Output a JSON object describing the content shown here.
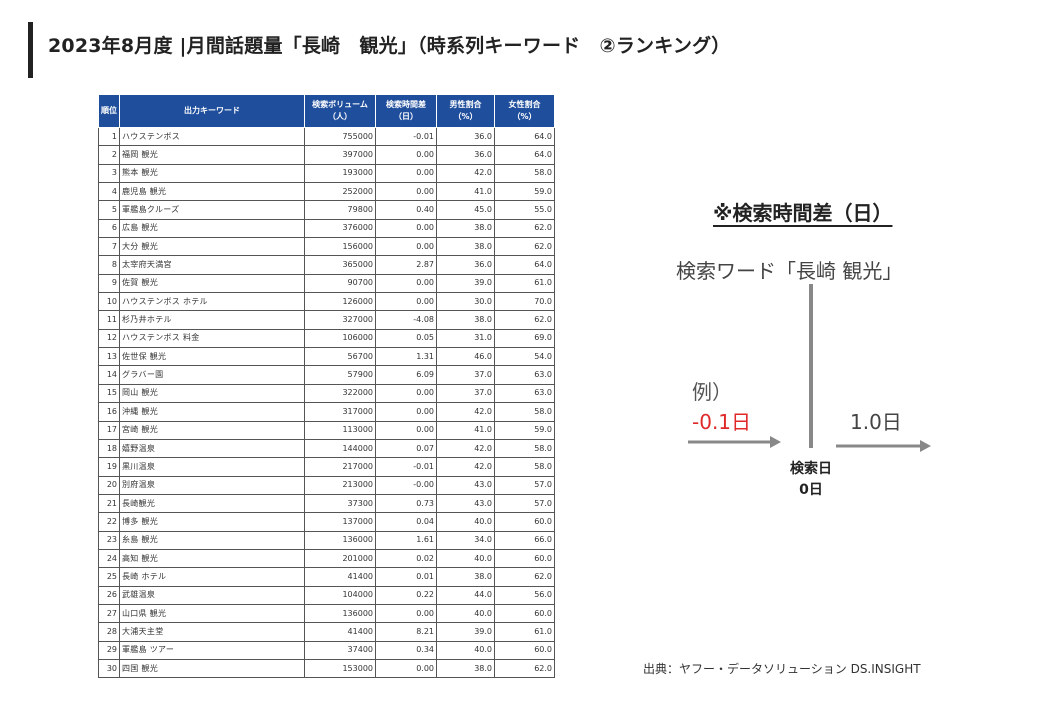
{
  "title": "2023年8月度 |月間話題量「長崎　観光」（時系列キーワード　②ランキング）",
  "table": {
    "headers": {
      "rank": "順位",
      "keyword": "出力キーワード",
      "volume": [
        "検索ボリューム",
        "（人）"
      ],
      "diff": [
        "検索時間差",
        "（日）"
      ],
      "male": [
        "男性割合",
        "（%）"
      ],
      "female": [
        "女性割合",
        "（%）"
      ]
    },
    "rows": [
      {
        "rank": "1",
        "keyword": "ハウステンボス",
        "volume": "755000",
        "diff": "-0.01",
        "male": "36.0",
        "female": "64.0",
        "diff_color": "red"
      },
      {
        "rank": "2",
        "keyword": "福岡 観光",
        "volume": "397000",
        "diff": "0.00",
        "male": "36.0",
        "female": "64.0"
      },
      {
        "rank": "3",
        "keyword": "熊本 観光",
        "volume": "193000",
        "diff": "0.00",
        "male": "42.0",
        "female": "58.0"
      },
      {
        "rank": "4",
        "keyword": "鹿児島 観光",
        "volume": "252000",
        "diff": "0.00",
        "male": "41.0",
        "female": "59.0"
      },
      {
        "rank": "5",
        "keyword": "軍艦島クルーズ",
        "volume": "79800",
        "diff": "0.40",
        "male": "45.0",
        "female": "55.0"
      },
      {
        "rank": "6",
        "keyword": "広島 観光",
        "volume": "376000",
        "diff": "0.00",
        "male": "38.0",
        "female": "62.0"
      },
      {
        "rank": "7",
        "keyword": "大分 観光",
        "volume": "156000",
        "diff": "0.00",
        "male": "38.0",
        "female": "62.0"
      },
      {
        "rank": "8",
        "keyword": "太宰府天満宮",
        "volume": "365000",
        "diff": "2.87",
        "male": "36.0",
        "female": "64.0"
      },
      {
        "rank": "9",
        "keyword": "佐賀 観光",
        "volume": "90700",
        "diff": "0.00",
        "male": "39.0",
        "female": "61.0"
      },
      {
        "rank": "10",
        "keyword": "ハウステンボス ホテル",
        "volume": "126000",
        "diff": "0.00",
        "male": "30.0",
        "female": "70.0"
      },
      {
        "rank": "11",
        "keyword": "杉乃井ホテル",
        "volume": "327000",
        "diff": "-4.08",
        "male": "38.0",
        "female": "62.0",
        "diff_color": "red"
      },
      {
        "rank": "12",
        "keyword": "ハウステンボス 料金",
        "volume": "106000",
        "diff": "0.05",
        "male": "31.0",
        "female": "69.0"
      },
      {
        "rank": "13",
        "keyword": "佐世保 観光",
        "volume": "56700",
        "diff": "1.31",
        "male": "46.0",
        "female": "54.0"
      },
      {
        "rank": "14",
        "keyword": "グラバー園",
        "volume": "57900",
        "diff": "6.09",
        "male": "37.0",
        "female": "63.0"
      },
      {
        "rank": "15",
        "keyword": "岡山 観光",
        "volume": "322000",
        "diff": "0.00",
        "male": "37.0",
        "female": "63.0"
      },
      {
        "rank": "16",
        "keyword": "沖縄 観光",
        "volume": "317000",
        "diff": "0.00",
        "male": "42.0",
        "female": "58.0"
      },
      {
        "rank": "17",
        "keyword": "宮崎 観光",
        "volume": "113000",
        "diff": "0.00",
        "male": "41.0",
        "female": "59.0"
      },
      {
        "rank": "18",
        "keyword": "嬉野温泉",
        "volume": "144000",
        "diff": "0.07",
        "male": "42.0",
        "female": "58.0",
        "diff_color": "red"
      },
      {
        "rank": "19",
        "keyword": "黒川温泉",
        "volume": "217000",
        "diff": "-0.01",
        "male": "42.0",
        "female": "58.0",
        "diff_color": "red"
      },
      {
        "rank": "20",
        "keyword": "別府温泉",
        "volume": "213000",
        "diff": "-0.00",
        "male": "43.0",
        "female": "57.0",
        "diff_color": "red"
      },
      {
        "rank": "21",
        "keyword": "長崎観光",
        "volume": "37300",
        "diff": "0.73",
        "male": "43.0",
        "female": "57.0"
      },
      {
        "rank": "22",
        "keyword": "博多 観光",
        "volume": "137000",
        "diff": "0.04",
        "male": "40.0",
        "female": "60.0"
      },
      {
        "rank": "23",
        "keyword": "糸島 観光",
        "volume": "136000",
        "diff": "1.61",
        "male": "34.0",
        "female": "66.0"
      },
      {
        "rank": "24",
        "keyword": "高知 観光",
        "volume": "201000",
        "diff": "0.02",
        "male": "40.0",
        "female": "60.0"
      },
      {
        "rank": "25",
        "keyword": "長崎 ホテル",
        "volume": "41400",
        "diff": "0.01",
        "male": "38.0",
        "female": "62.0"
      },
      {
        "rank": "26",
        "keyword": "武雄温泉",
        "volume": "104000",
        "diff": "0.22",
        "male": "44.0",
        "female": "56.0",
        "diff_color": "red"
      },
      {
        "rank": "27",
        "keyword": "山口県 観光",
        "volume": "136000",
        "diff": "0.00",
        "male": "40.0",
        "female": "60.0"
      },
      {
        "rank": "28",
        "keyword": "大浦天主堂",
        "volume": "41400",
        "diff": "8.21",
        "male": "39.0",
        "female": "61.0"
      },
      {
        "rank": "29",
        "keyword": "軍艦島 ツアー",
        "volume": "37400",
        "diff": "0.34",
        "male": "40.0",
        "female": "60.0"
      },
      {
        "rank": "30",
        "keyword": "四国 観光",
        "volume": "153000",
        "diff": "0.00",
        "male": "38.0",
        "female": "62.0"
      }
    ]
  },
  "note": {
    "title": "※検索時間差（日）",
    "search_word": "検索ワード「長崎 観光」",
    "example_label": "例）",
    "negative_example": "-0.1日",
    "positive_example": "1.0日",
    "axis_label_line1": "検索日",
    "axis_label_line2": "0日"
  },
  "source": "出典：ヤフー・データソリューション DS.INSIGHT",
  "colors": {
    "header_bg": "#1f4e9c",
    "negative": "#d22222",
    "example_negative": "#e0292a",
    "arrow": "#888888"
  }
}
